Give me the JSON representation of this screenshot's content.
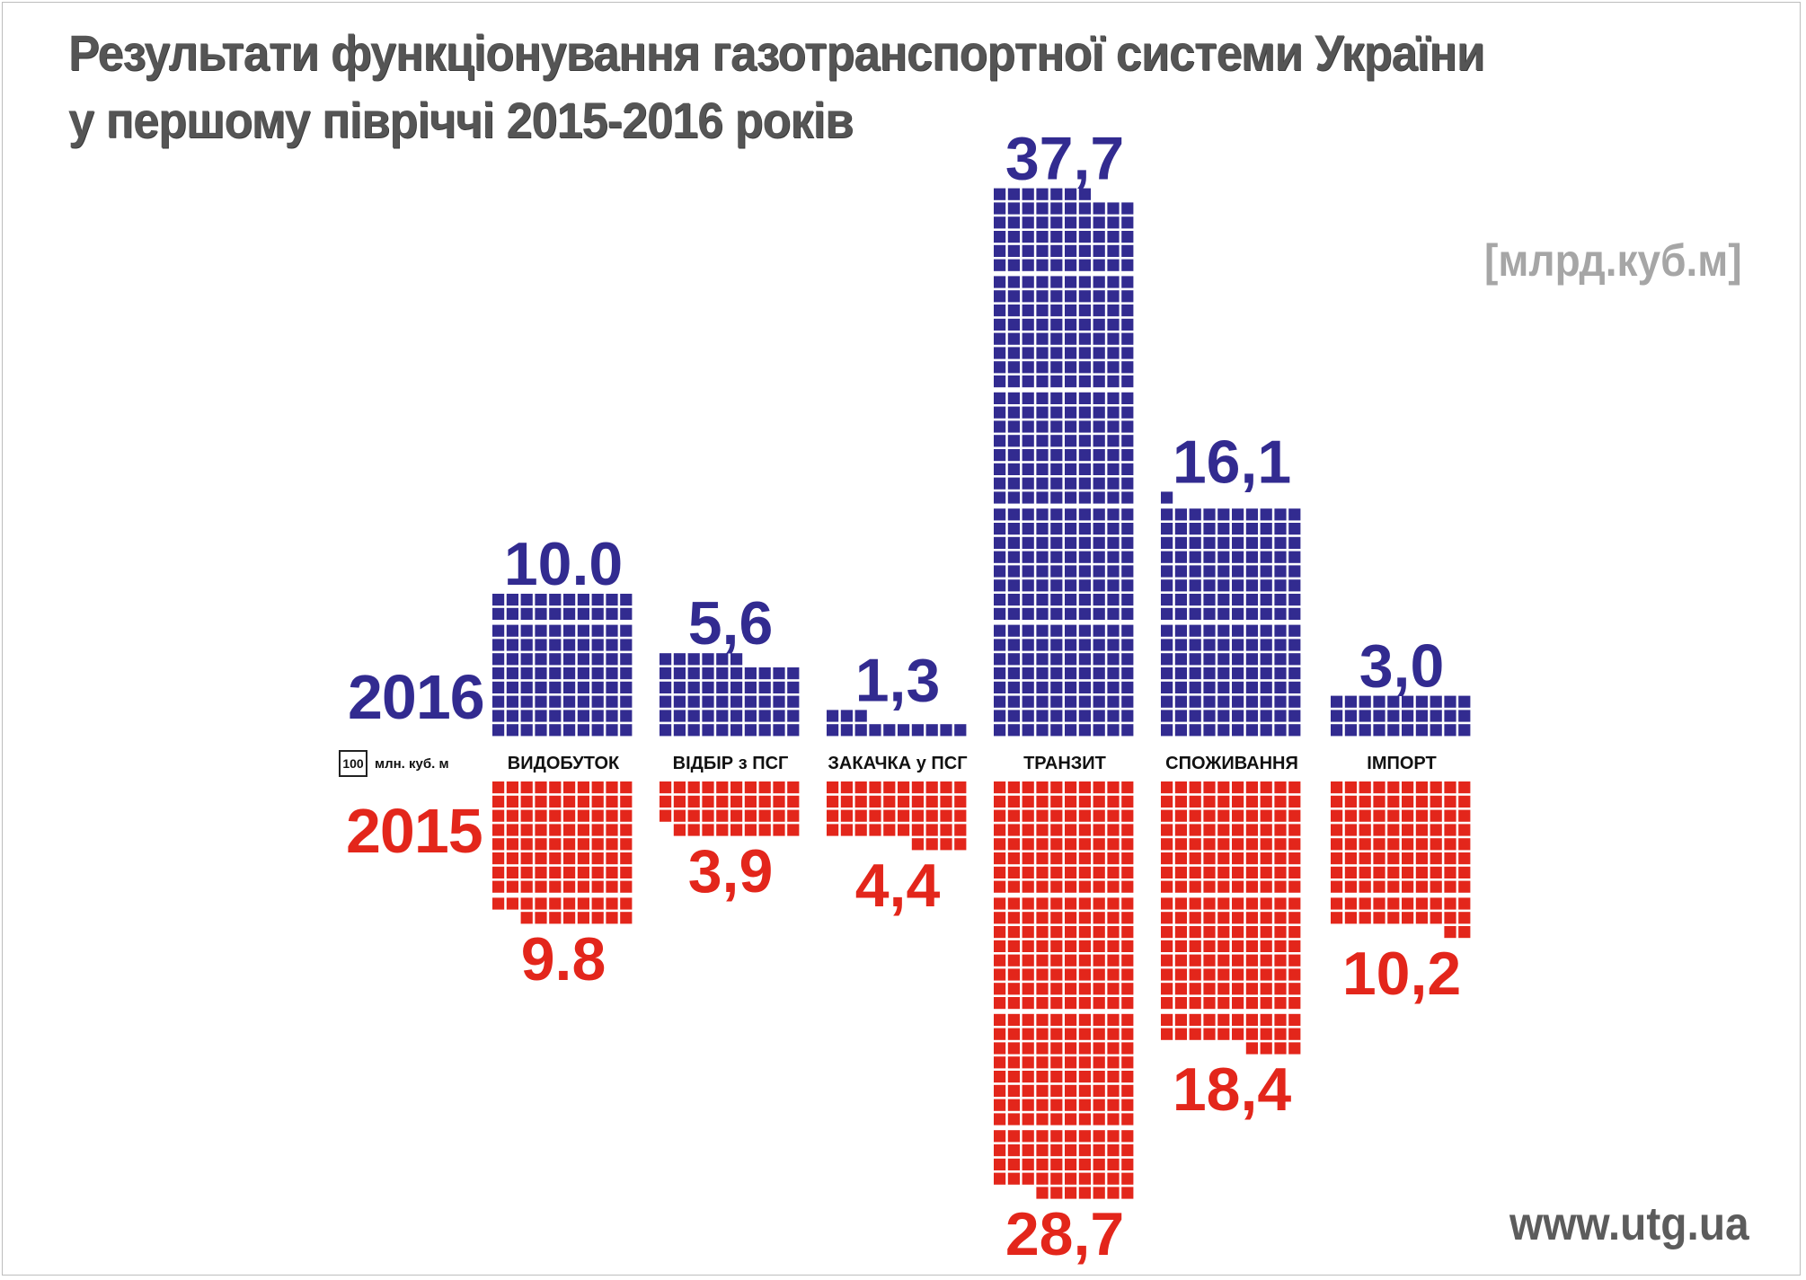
{
  "title": {
    "line1": "Результати функціонування газотранспортної системи України",
    "line2": "у першому півріччі 2015-2016 років"
  },
  "unit": "[млрд.куб.м]",
  "website": "www.utg.ua",
  "legend": {
    "box_value": "100",
    "text": "млн. куб. м"
  },
  "colors": {
    "y2016": "#322b90",
    "y2015": "#e3261b",
    "title": "#555555"
  },
  "chart_data": {
    "type": "bar",
    "style": "unit-square pictogram (1 square = 100 млн. куб. м), mirrored: 2016 above axis, 2015 below axis",
    "title": "Результати функціонування газотранспортної системи України у першому півріччі 2015-2016 років",
    "unit": "[млрд.куб.м]",
    "categories": [
      "ВИДОБУТОК",
      "ВІДБІР з ПСГ",
      "ЗАКАЧКА у ПСГ",
      "ТРАНЗИТ",
      "СПОЖИВАННЯ",
      "ІМПОРТ"
    ],
    "series": [
      {
        "name": "2016",
        "values": [
          10.0,
          5.6,
          1.3,
          37.7,
          16.1,
          3.0
        ],
        "labels": [
          "10.0",
          "5,6",
          "1,3",
          "37,7",
          "16,1",
          "3,0"
        ],
        "color": "#322b90"
      },
      {
        "name": "2015",
        "values": [
          9.8,
          3.9,
          4.4,
          28.7,
          18.4,
          10.2
        ],
        "labels": [
          "9.8",
          "3,9",
          "4,4",
          "28,7",
          "18,4",
          "10,2"
        ],
        "color": "#e3261b"
      }
    ]
  }
}
